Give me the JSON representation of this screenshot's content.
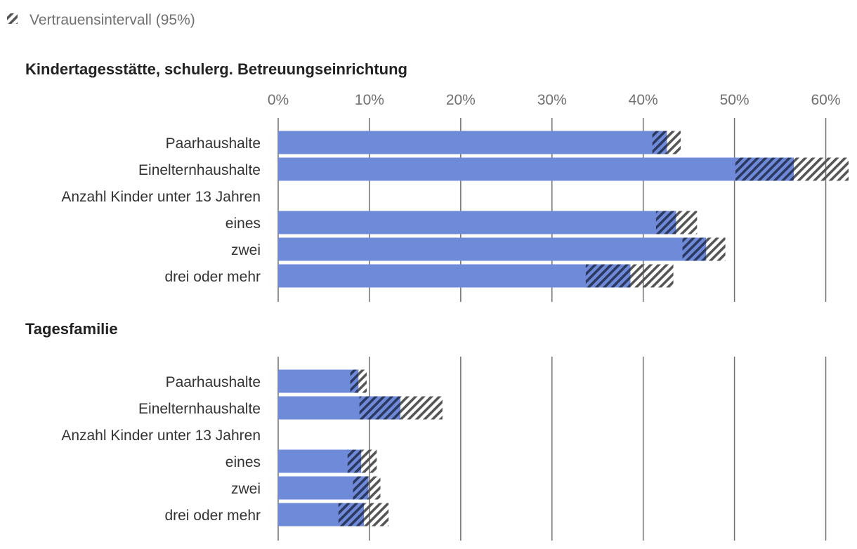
{
  "legend": {
    "label": "Vertrauensintervall (95%)",
    "icon": "ci-hatch-icon"
  },
  "colors": {
    "bar": "#6f8ad8",
    "hatch": "#555555",
    "grid": "#707070"
  },
  "chart_data": [
    {
      "type": "bar",
      "orientation": "horizontal",
      "title": "Kindertagesstätte, schulerg. Betreuungseinrichtung",
      "xlim": [
        0,
        62.5
      ],
      "ticks": [
        0,
        10,
        20,
        30,
        40,
        50,
        60
      ],
      "tick_labels": [
        "0%",
        "10%",
        "20%",
        "30%",
        "40%",
        "50%",
        "60%"
      ],
      "categories": [
        "Paarhaushalte",
        "Einelternhaushalte",
        "Anzahl Kinder unter 13 Jahren",
        "eines",
        "zwei",
        "drei oder mehr"
      ],
      "values": [
        42.6,
        56.5,
        null,
        43.6,
        46.9,
        38.6
      ],
      "ci_lower": [
        41.0,
        50.1,
        null,
        41.4,
        44.3,
        33.7
      ],
      "ci_upper": [
        44.1,
        62.9,
        null,
        45.9,
        49.0,
        43.3
      ]
    },
    {
      "type": "bar",
      "orientation": "horizontal",
      "title": "Tagesfamilie",
      "xlim": [
        0,
        62.5
      ],
      "ticks": [
        0,
        10,
        20,
        30,
        40,
        50,
        60
      ],
      "tick_labels": [
        "0%",
        "10%",
        "20%",
        "30%",
        "40%",
        "50%",
        "60%"
      ],
      "categories": [
        "Paarhaushalte",
        "Einelternhaushalte",
        "Anzahl Kinder unter 13 Jahren",
        "eines",
        "zwei",
        "drei oder mehr"
      ],
      "values": [
        8.8,
        13.4,
        null,
        9.1,
        9.9,
        9.4
      ],
      "ci_lower": [
        7.9,
        8.9,
        null,
        7.6,
        8.2,
        6.6
      ],
      "ci_upper": [
        9.7,
        18.0,
        null,
        10.8,
        11.2,
        12.1
      ]
    }
  ]
}
